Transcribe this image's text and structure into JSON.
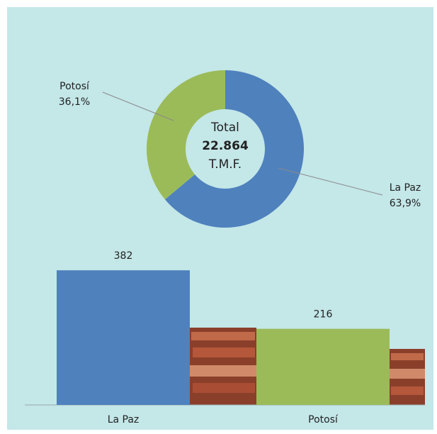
{
  "chart_data": [
    {
      "type": "donut",
      "categories": [
        "La Paz",
        "Potosí"
      ],
      "values": [
        63.9,
        36.1
      ],
      "value_labels": [
        "63,9%",
        "36,1%"
      ],
      "colors": [
        "#4f81bd",
        "#9bbb59"
      ],
      "center_text": [
        "Total",
        "22.864",
        "T.M.F."
      ]
    },
    {
      "type": "bar",
      "categories": [
        "La Paz",
        "Potosí"
      ],
      "values": [
        382,
        216
      ],
      "colors": [
        "#4f81bd",
        "#9bbb59"
      ]
    }
  ]
}
